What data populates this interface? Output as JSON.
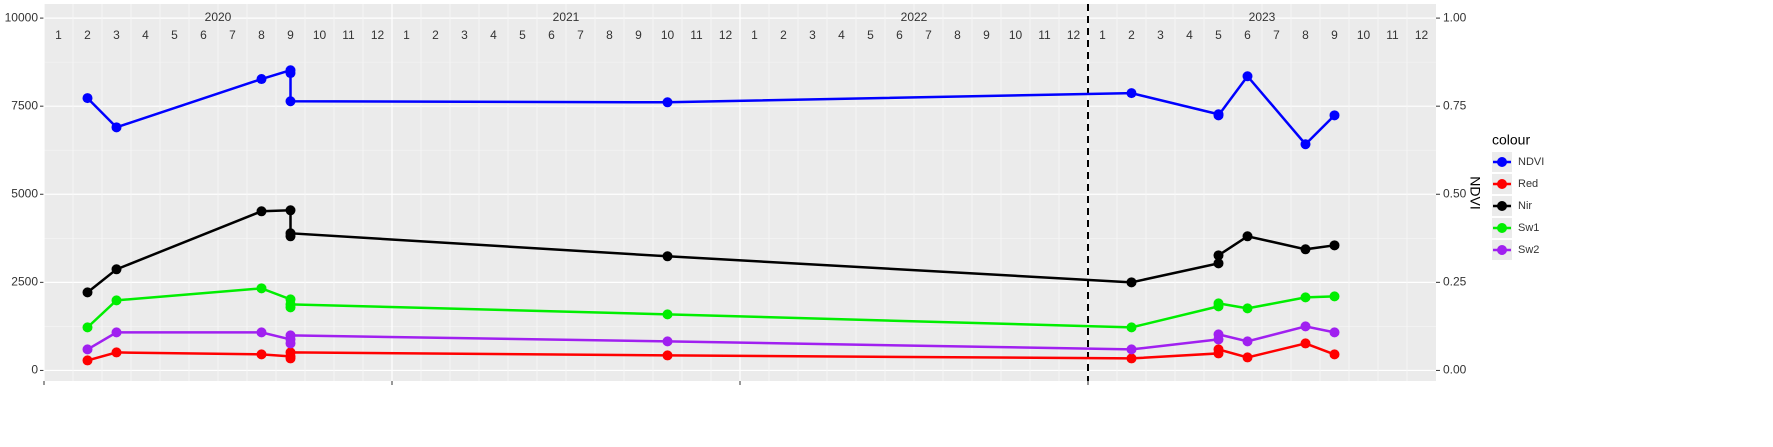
{
  "chart_data": {
    "type": "line",
    "x": [
      "2020-02",
      "2020-03",
      "2020-08",
      "2020-09",
      "2020-09",
      "2020-09",
      "2021-10",
      "2023-02",
      "2023-05",
      "2023-05",
      "2023-06",
      "2023-08",
      "2023-09"
    ],
    "xlim": [
      "2020-01",
      "2023-12"
    ],
    "years": [
      2020,
      2021,
      2022,
      2023
    ],
    "month_labels": [
      1,
      2,
      3,
      4,
      5,
      6,
      7,
      8,
      9,
      10,
      11,
      12
    ],
    "vline": "2023-01",
    "ylim": [
      -300,
      10400
    ],
    "yticks": [
      0,
      2500,
      5000,
      7500,
      10000
    ],
    "y2lim": [
      -0.03,
      1.04
    ],
    "y2ticks": [
      {
        "value": 0,
        "label": "0.00"
      },
      {
        "value": 0.25,
        "label": "0.25"
      },
      {
        "value": 0.5,
        "label": "0.50"
      },
      {
        "value": 0.75,
        "label": "0.75"
      },
      {
        "value": 1,
        "label": "1.00"
      }
    ],
    "y2label": "NDVI",
    "legend_title": "colour",
    "grid": true,
    "series": [
      {
        "name": "NDVI",
        "color": "#0000ff",
        "axis": "y2",
        "values": [
          0.773,
          0.69,
          0.827,
          0.852,
          0.844,
          0.764,
          0.761,
          0.787,
          0.727,
          0.724,
          0.835,
          0.642,
          0.724
        ]
      },
      {
        "name": "Red",
        "color": "#ff0000",
        "values": [
          284,
          511,
          455,
          398,
          341,
          511,
          426,
          341,
          483,
          597,
          369,
          767,
          455
        ]
      },
      {
        "name": "Nir",
        "color": "#000000",
        "values": [
          2216,
          2870,
          4517,
          4545,
          3807,
          3892,
          3239,
          2500,
          3040,
          3267,
          3807,
          3438,
          3551
        ]
      },
      {
        "name": "Sw1",
        "color": "#00ee00",
        "values": [
          1222,
          1989,
          2330,
          2017,
          1790,
          1875,
          1591,
          1222,
          1818,
          1903,
          1761,
          2074,
          2102
        ]
      },
      {
        "name": "Sw2",
        "color": "#a020f0",
        "values": [
          597,
          1080,
          1080,
          880,
          767,
          994,
          824,
          597,
          880,
          1023,
          824,
          1250,
          1080
        ]
      }
    ]
  }
}
